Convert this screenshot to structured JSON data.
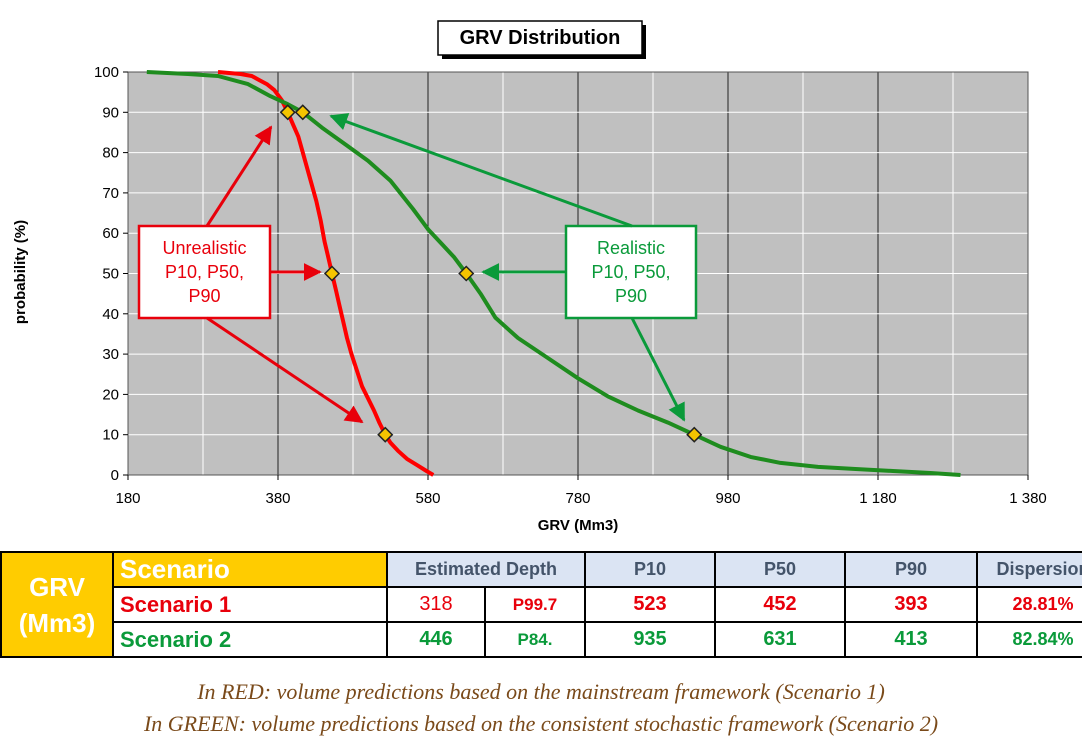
{
  "chart_data": {
    "type": "line",
    "title": "GRV Distribution",
    "xlabel": "GRV  (Mm3)",
    "ylabel": "probability  (%)",
    "xlim": [
      180,
      1380
    ],
    "ylim": [
      0,
      100
    ],
    "x_ticks": [
      180,
      380,
      580,
      780,
      980,
      1180,
      1380
    ],
    "x_tick_labels": [
      "180",
      "380",
      "580",
      "780",
      "980",
      "1 180",
      "1 380"
    ],
    "y_ticks": [
      0,
      10,
      20,
      30,
      40,
      50,
      60,
      70,
      80,
      90,
      100
    ],
    "grid": true,
    "series": [
      {
        "color": "#ff0000",
        "x": [
          300,
          330,
          345,
          355,
          365,
          375,
          385,
          393,
          400,
          407,
          413,
          419,
          425,
          431,
          437,
          442,
          447,
          452,
          457,
          462,
          467,
          472,
          478,
          485,
          492,
          500,
          508,
          515,
          523,
          530,
          540,
          552,
          565,
          578,
          587
        ],
        "y": [
          100,
          99.5,
          99,
          98,
          97,
          95.5,
          93,
          90,
          87,
          84,
          80,
          76,
          72,
          68,
          63,
          58,
          54,
          50,
          46,
          42,
          38,
          34,
          30,
          26,
          22,
          19,
          16,
          13,
          10,
          8,
          6,
          4,
          2.5,
          1,
          0
        ]
      },
      {
        "color": "#1e8c1e",
        "x": [
          205,
          260,
          300,
          340,
          370,
          393,
          413,
          440,
          470,
          500,
          530,
          560,
          580,
          600,
          615,
          631,
          650,
          670,
          700,
          740,
          780,
          820,
          860,
          900,
          935,
          970,
          1010,
          1050,
          1100,
          1150,
          1200,
          1250,
          1290
        ],
        "y": [
          100,
          99.5,
          99,
          97,
          94,
          92,
          90,
          86,
          82,
          78,
          73,
          66,
          61,
          57,
          54,
          50,
          45,
          39,
          34,
          29,
          24,
          19.5,
          16,
          13,
          10,
          7,
          4.5,
          3,
          2,
          1.5,
          1,
          0.5,
          0
        ]
      }
    ],
    "markers": [
      {
        "series": 0,
        "label": "P90",
        "x": 393,
        "y": 90
      },
      {
        "series": 0,
        "label": "P50",
        "x": 452,
        "y": 50
      },
      {
        "series": 0,
        "label": "P10",
        "x": 523,
        "y": 10
      },
      {
        "series": 1,
        "label": "P90",
        "x": 413,
        "y": 90
      },
      {
        "series": 1,
        "label": "P50",
        "x": 631,
        "y": 50
      },
      {
        "series": 1,
        "label": "P10",
        "x": 935,
        "y": 10
      }
    ],
    "annotations": [
      {
        "text_lines": [
          "Unrealistic",
          "P10, P50,",
          "P90"
        ],
        "color": "#e8000b"
      },
      {
        "text_lines": [
          "Realistic",
          "P10, P50,",
          "P90"
        ],
        "color": "#0a9a3a"
      }
    ]
  },
  "table": {
    "corner_lines": [
      "GRV",
      "(Mm3)"
    ],
    "header": {
      "scenario": "Scenario",
      "estimated_depth": "Estimated Depth",
      "p10": "P10",
      "p50": "P50",
      "p90": "P90",
      "dispersion": "Dispersion"
    },
    "rows": [
      {
        "name": "Scenario 1",
        "depth": "318",
        "depth_p": "P99.7",
        "p10": "523",
        "p50": "452",
        "p90": "393",
        "dispersion": "28.81%"
      },
      {
        "name": "Scenario 2",
        "depth": "446",
        "depth_p": "P84.",
        "p10": "935",
        "p50": "631",
        "p90": "413",
        "dispersion": "82.84%"
      }
    ]
  },
  "caption": {
    "line1": "In RED: volume predictions based on the mainstream framework (Scenario 1)",
    "line2": "In GREEN: volume predictions based on the consistent stochastic framework (Scenario 2)"
  },
  "colors": {
    "red": "#e8000b",
    "green": "#0a9a3a",
    "gold": "#ffcc00",
    "header_bg": "#dbe4f3",
    "plot_bg": "#c0c0c0"
  }
}
